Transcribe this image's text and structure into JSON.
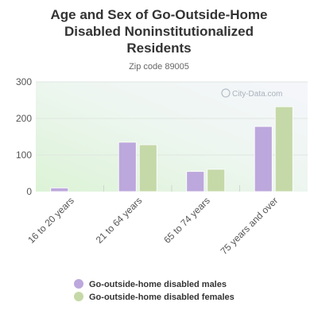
{
  "chart_data": {
    "type": "bar",
    "title_lines": [
      "Age and Sex of Go-Outside-Home",
      "Disabled Noninstitutionalized",
      "Residents"
    ],
    "subtitle": "Zip code 89005",
    "categories": [
      "16 to 20 years",
      "21 to 64 years",
      "65 to 74 years",
      "75 years and over"
    ],
    "series": [
      {
        "name": "Go-outside-home disabled males",
        "color": "#bca8dc",
        "values": [
          10,
          135,
          55,
          178
        ]
      },
      {
        "name": "Go-outside-home disabled females",
        "color": "#c5d9a8",
        "values": [
          0,
          128,
          61,
          232
        ]
      }
    ],
    "ylim": [
      0,
      300
    ],
    "yticks": [
      0,
      100,
      200,
      300
    ],
    "grid": true,
    "legend_position": "bottom",
    "watermark": "City-Data.com"
  }
}
